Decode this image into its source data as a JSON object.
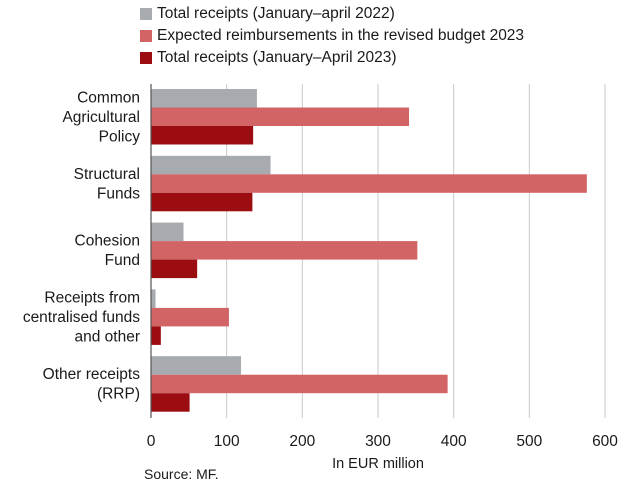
{
  "chart_data": {
    "type": "bar",
    "orientation": "horizontal",
    "categories": [
      [
        "Common",
        "Agricultural",
        "Policy"
      ],
      [
        "Structural",
        "Funds"
      ],
      [
        "Cohesion",
        "Fund"
      ],
      [
        "Receipts from",
        "centralised funds",
        "and other"
      ],
      [
        "Other receipts",
        "(RRP)"
      ]
    ],
    "series": [
      {
        "name": "Total receipts (January–april 2022)",
        "color": "#a7abb0",
        "values": [
          140,
          158,
          43,
          6,
          119
        ]
      },
      {
        "name": "Expected reimbursements in the revised budget 2023",
        "color": "#d26466",
        "values": [
          341,
          576,
          352,
          103,
          392
        ]
      },
      {
        "name": "Total receipts (January–April 2023)",
        "color": "#9b0d10",
        "values": [
          135,
          134,
          61,
          13,
          51
        ]
      }
    ],
    "xlim": [
      0,
      600
    ],
    "xticks": [
      0,
      100,
      200,
      300,
      400,
      500,
      600
    ],
    "xlabel": "In EUR million",
    "grid": true,
    "legend_position": "top"
  },
  "source": "Source: MF."
}
